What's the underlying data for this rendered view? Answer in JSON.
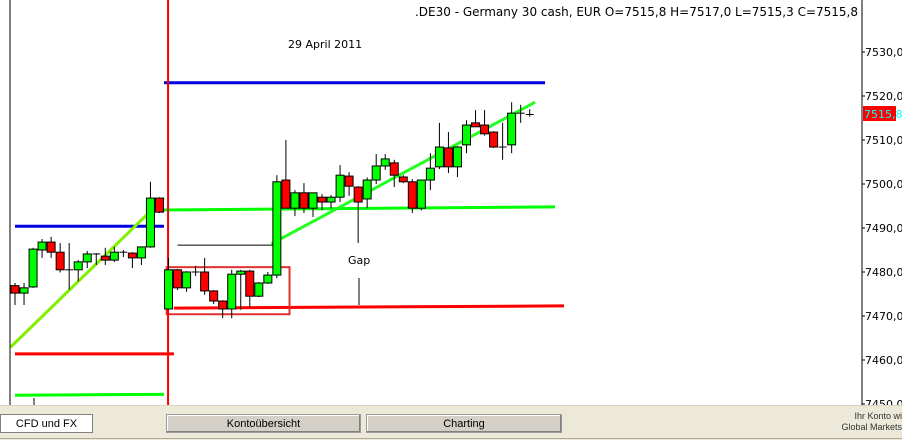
{
  "chart_data": {
    "type": "candlestick",
    "title": ".DE30 - Germany 30 cash, EUR O=7515,8 H=7517,0 L=7515,3 C=7515,8",
    "date_label": "29 April 2011",
    "annotation": "Gap",
    "last_price_label": "7515,8",
    "ylim": [
      7450,
      7532
    ],
    "y_ticks": [
      "7530,0",
      "7520,0",
      "7510,0",
      "7500,0",
      "7490,0",
      "7480,0",
      "7470,0",
      "7460,0",
      "7450,0"
    ],
    "y_tick_values": [
      7530,
      7520,
      7510,
      7500,
      7490,
      7480,
      7470,
      7460,
      7450
    ],
    "grid": false,
    "day_separator_bar": 17,
    "candles": [
      [
        7476.9,
        7477.5,
        7472.5,
        7475.2
      ],
      [
        7475.2,
        7477.5,
        7472.5,
        7476.4
      ],
      [
        7476.6,
        7485.5,
        7476.4,
        7485.2
      ],
      [
        7485.0,
        7487.5,
        7483.2,
        7486.8
      ],
      [
        7486.8,
        7488.0,
        7483.2,
        7484.5
      ],
      [
        7484.5,
        7486.6,
        7479.9,
        7480.5
      ],
      [
        7480.5,
        7486.6,
        7476.0,
        7480.5
      ],
      [
        7480.5,
        7482.7,
        7477.9,
        7482.3
      ],
      [
        7482.3,
        7484.8,
        7480.9,
        7484.1
      ],
      [
        7484.1,
        7484.3,
        7481.6,
        7484.1
      ],
      [
        7483.6,
        7485.5,
        7481.6,
        7482.7
      ],
      [
        7482.7,
        7485.7,
        7482.3,
        7484.5
      ],
      [
        7484.5,
        7485.0,
        7483.4,
        7484.5
      ],
      [
        7484.3,
        7484.5,
        7480.9,
        7483.2
      ],
      [
        7483.2,
        7485.0,
        7481.6,
        7485.7
      ],
      [
        7485.7,
        7500.5,
        7485.5,
        7496.8
      ],
      [
        7496.8,
        7497.0,
        7493.4,
        7493.6
      ],
      [
        7471.6,
        7483.2,
        7471.4,
        7480.5
      ],
      [
        7480.5,
        7480.7,
        7475.9,
        7476.4
      ],
      [
        7476.4,
        7480.2,
        7475.5,
        7480.0
      ],
      [
        7480.0,
        7481.4,
        7479.1,
        7480.0
      ],
      [
        7480.0,
        7483.2,
        7474.8,
        7475.7
      ],
      [
        7475.7,
        7475.9,
        7472.7,
        7473.4
      ],
      [
        7473.4,
        7473.6,
        7469.5,
        7471.6
      ],
      [
        7471.6,
        7480.5,
        7469.5,
        7479.5
      ],
      [
        7479.5,
        7480.5,
        7471.4,
        7480.2
      ],
      [
        7480.2,
        7480.5,
        7472.0,
        7474.5
      ],
      [
        7474.5,
        7477.7,
        7474.3,
        7477.5
      ],
      [
        7477.5,
        7480.0,
        7477.3,
        7479.3
      ],
      [
        7479.3,
        7502.0,
        7478.6,
        7500.5
      ],
      [
        7500.9,
        7510.0,
        7494.5,
        7494.5
      ],
      [
        7494.5,
        7498.6,
        7492.7,
        7498.0
      ],
      [
        7498.0,
        7500.2,
        7493.4,
        7494.5
      ],
      [
        7494.5,
        7497.5,
        7492.5,
        7498.0
      ],
      [
        7497.0,
        7497.7,
        7494.1,
        7495.9
      ],
      [
        7495.9,
        7497.5,
        7494.5,
        7497.0
      ],
      [
        7497.0,
        7504.3,
        7495.9,
        7502.0
      ],
      [
        7501.8,
        7502.7,
        7497.3,
        7499.5
      ],
      [
        7499.3,
        7499.5,
        7486.6,
        7495.9
      ],
      [
        7496.6,
        7501.5,
        7494.5,
        7500.9
      ],
      [
        7500.9,
        7506.8,
        7500.0,
        7504.1
      ],
      [
        7504.1,
        7506.8,
        7503.2,
        7505.7
      ],
      [
        7504.8,
        7505.5,
        7499.3,
        7502.0
      ],
      [
        7501.6,
        7502.0,
        7500.2,
        7500.5
      ],
      [
        7500.5,
        7501.1,
        7493.4,
        7494.5
      ],
      [
        7494.5,
        7501.0,
        7494.0,
        7500.9
      ],
      [
        7500.9,
        7507.0,
        7498.6,
        7503.6
      ],
      [
        7503.9,
        7513.9,
        7503.4,
        7508.4
      ],
      [
        7508.2,
        7511.8,
        7502.5,
        7503.9
      ],
      [
        7503.9,
        7508.6,
        7501.6,
        7508.4
      ],
      [
        7508.9,
        7514.5,
        7507.0,
        7513.4
      ],
      [
        7513.9,
        7516.8,
        7513.0,
        7513.0
      ],
      [
        7513.4,
        7516.8,
        7511.0,
        7511.4
      ],
      [
        7511.8,
        7512.0,
        7508.2,
        7508.4
      ],
      [
        7508.4,
        7513.9,
        7505.5,
        7508.4
      ],
      [
        7508.9,
        7518.6,
        7507.0,
        7516.1
      ],
      [
        7516.1,
        7518.0,
        7513.9,
        7515.9
      ],
      [
        7515.8,
        7517.0,
        7515.3,
        7515.8
      ]
    ],
    "lines": [
      {
        "name": "resistance-prev-day",
        "color": "#0000e0",
        "from_bar": 0,
        "to_bar": 16.5,
        "y1": 7490.4,
        "y2": 7490.4
      },
      {
        "name": "resistance-today",
        "color": "#0000e0",
        "from_bar": 16.5,
        "to_bar": 58.7,
        "y1": 7523.0,
        "y2": 7523.0
      },
      {
        "name": "support-red-prev-day",
        "color": "#ff0000",
        "from_bar": 0,
        "to_bar": 17.6,
        "y1": 7461.4,
        "y2": 7461.4
      },
      {
        "name": "support-red-today",
        "color": "#ff0000",
        "from_bar": 17.6,
        "to_bar": 60.8,
        "y1": 7471.8,
        "y2": 7472.3
      },
      {
        "name": "support-green-prev-day",
        "color": "#00ff00",
        "from_bar": 0,
        "to_bar": 16.5,
        "y1": 7452.0,
        "y2": 7452.2
      },
      {
        "name": "support-green-today",
        "color": "#00ff00",
        "from_bar": 16.5,
        "to_bar": 59.8,
        "y1": 7494.1,
        "y2": 7494.8
      },
      {
        "name": "trendline-prev-day",
        "color": "#80f000",
        "from_bar": -0.5,
        "to_bar": 16.5,
        "y1": 7462.9,
        "y2": 7496.8
      },
      {
        "name": "trendline-today",
        "color": "#20ff20",
        "from_bar": 28.4,
        "to_bar": 57.6,
        "y1": 7486.4,
        "y2": 7518.6
      },
      {
        "name": "gap-reference",
        "color": "#000000",
        "from_bar": 18.0,
        "to_bar": 29.5,
        "y1": 7486.1,
        "y2": 7486.1
      }
    ],
    "box": {
      "color": "#e03030",
      "from_bar": 16.8,
      "to_bar": 30.4,
      "top": 7481.1,
      "bottom": 7470.4
    },
    "colors": {
      "up": "#00ff00",
      "down": "#ff0000",
      "separator": "#ff0000",
      "price_tag_bg": "#ff0000",
      "price_tag_text": "#00ffff"
    }
  },
  "tabs": [
    {
      "label": "CFD und FX",
      "active": true
    },
    {
      "label": "Kontoübersicht",
      "active": false
    },
    {
      "label": "Charting",
      "active": false
    }
  ],
  "status": {
    "line1": "Ihr Konto wi",
    "line2": "Global Markets"
  }
}
